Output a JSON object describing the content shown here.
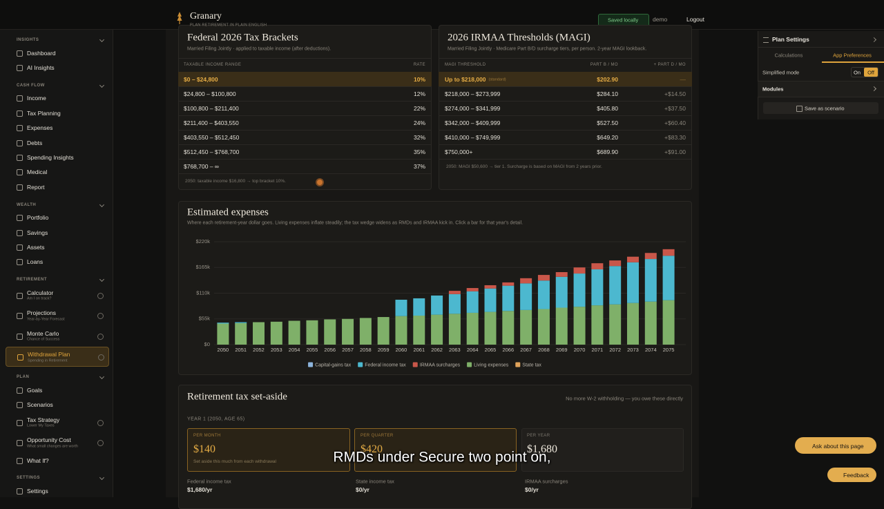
{
  "topbar": {
    "brand": "Granary",
    "tagline": "PLAN RETIREMENT IN PLAIN ENGLISH",
    "saved": "Saved locally",
    "user": "demo",
    "logout": "Logout"
  },
  "sidebar": {
    "sections": [
      {
        "title": "INSIGHTS",
        "items": [
          {
            "label": "Dashboard"
          },
          {
            "label": "AI Insights"
          }
        ]
      },
      {
        "title": "CASH FLOW",
        "items": [
          {
            "label": "Income"
          },
          {
            "label": "Tax Planning"
          },
          {
            "label": "Expenses"
          },
          {
            "label": "Debts"
          },
          {
            "label": "Spending Insights"
          },
          {
            "label": "Medical"
          },
          {
            "label": "Report"
          }
        ]
      },
      {
        "title": "WEALTH",
        "items": [
          {
            "label": "Portfolio"
          },
          {
            "label": "Savings"
          },
          {
            "label": "Assets"
          },
          {
            "label": "Loans"
          }
        ]
      },
      {
        "title": "RETIREMENT",
        "items": [
          {
            "label": "Calculator",
            "sub": "Am I on track?"
          },
          {
            "label": "Projections",
            "sub": "Year-by-Year Forecast"
          },
          {
            "label": "Monte Carlo",
            "sub": "Chance of Success"
          },
          {
            "label": "Withdrawal Plan",
            "sub": "Spending in Retirement",
            "active": true
          }
        ]
      },
      {
        "title": "PLAN",
        "items": [
          {
            "label": "Goals"
          },
          {
            "label": "Scenarios"
          },
          {
            "label": "Tax Strategy",
            "sub": "Lower My Taxes"
          },
          {
            "label": "Opportunity Cost",
            "sub": "What small changes are worth"
          },
          {
            "label": "What If?"
          }
        ]
      },
      {
        "title": "SETTINGS",
        "items": [
          {
            "label": "Settings"
          }
        ]
      }
    ]
  },
  "brackets": {
    "title": "Federal 2026 Tax Brackets",
    "subtitle": "Married Filing Jointly · applied to taxable income (after deductions).",
    "headers": [
      "TAXABLE INCOME RANGE",
      "RATE"
    ],
    "rows": [
      [
        "$0 – $24,800",
        "10%"
      ],
      [
        "$24,800 – $100,800",
        "12%"
      ],
      [
        "$100,800 – $211,400",
        "22%"
      ],
      [
        "$211,400 – $403,550",
        "24%"
      ],
      [
        "$403,550 – $512,450",
        "32%"
      ],
      [
        "$512,450 – $768,700",
        "35%"
      ],
      [
        "$768,700 – ∞",
        "37%"
      ]
    ],
    "note": "2050: taxable income $16,800 → top bracket 10%."
  },
  "irmaa": {
    "title": "2026 IRMAA Thresholds (MAGI)",
    "subtitle": "Married Filing Jointly · Medicare Part B/D surcharge tiers, per person. 2-year MAGI lookback.",
    "headers": [
      "MAGI THRESHOLD",
      "PART B / MO",
      "+ PART D / MO"
    ],
    "rows": [
      [
        "Up to $218,000",
        "$202.90",
        "—"
      ],
      [
        "$218,000 – $273,999",
        "$284.10",
        "+$14.50"
      ],
      [
        "$274,000 – $341,999",
        "$405.80",
        "+$37.50"
      ],
      [
        "$342,000 – $409,999",
        "$527.50",
        "+$60.40"
      ],
      [
        "$410,000 – $749,999",
        "$649.20",
        "+$83.30"
      ],
      [
        "$750,000+",
        "$689.90",
        "+$91.00"
      ]
    ],
    "row_tag": "(standard)",
    "note": "2050: MAGI $50,600 → tier 1. Surcharge is based on MAGI from 2 years prior."
  },
  "expenses": {
    "title": "Estimated expenses",
    "subtitle": "Where each retirement-year dollar goes. Living expenses inflate steadily; the tax wedge widens as RMDs and IRMAA kick in. Click a bar for that year's detail."
  },
  "chart_data": {
    "type": "bar",
    "stacked": true,
    "grid": true,
    "categories": [
      "2050",
      "2051",
      "2052",
      "2053",
      "2054",
      "2055",
      "2056",
      "2057",
      "2058",
      "2059",
      "2060",
      "2061",
      "2062",
      "2063",
      "2064",
      "2065",
      "2066",
      "2067",
      "2068",
      "2069",
      "2070",
      "2071",
      "2072",
      "2073",
      "2074",
      "2075"
    ],
    "series": [
      {
        "name": "Living expenses",
        "color": "#7fb069",
        "values": [
          45000,
          46000,
          48000,
          49000,
          51000,
          52000,
          54000,
          55000,
          57000,
          59000,
          61000,
          62000,
          64000,
          66000,
          68000,
          70000,
          72000,
          74000,
          76000,
          79000,
          81000,
          84000,
          86000,
          89000,
          92000,
          95000
        ]
      },
      {
        "name": "Federal income tax",
        "color": "#4cb8cf",
        "values": [
          2000,
          2000,
          0,
          0,
          0,
          0,
          0,
          0,
          0,
          0,
          35000,
          37000,
          41000,
          42000,
          46000,
          50000,
          54000,
          57000,
          61000,
          66000,
          71000,
          77000,
          82000,
          87000,
          91000,
          95000
        ]
      },
      {
        "name": "IRMAA surcharges",
        "color": "#c9574a",
        "values": [
          0,
          0,
          0,
          0,
          0,
          0,
          0,
          0,
          0,
          0,
          0,
          0,
          0,
          7000,
          7000,
          7000,
          7000,
          11000,
          12000,
          10000,
          13000,
          13000,
          12000,
          12000,
          13000,
          14000
        ]
      },
      {
        "name": "Capital-gains tax",
        "color": "#8db4dc",
        "values": [
          0,
          0,
          0,
          0,
          0,
          0,
          0,
          0,
          0,
          0,
          0,
          0,
          0,
          0,
          0,
          0,
          0,
          0,
          0,
          0,
          0,
          0,
          0,
          0,
          0,
          0
        ]
      },
      {
        "name": "State tax",
        "color": "#e0a35a",
        "values": [
          0,
          0,
          0,
          0,
          0,
          0,
          0,
          0,
          0,
          0,
          0,
          0,
          0,
          0,
          0,
          0,
          0,
          0,
          0,
          0,
          0,
          0,
          0,
          0,
          0,
          0
        ]
      }
    ],
    "ylim": [
      0,
      220000
    ],
    "yticks": [
      {
        "value": 0,
        "label": "$0"
      },
      {
        "value": 55000,
        "label": "$55k"
      },
      {
        "value": 110000,
        "label": "$110k"
      },
      {
        "value": 165000,
        "label": "$165k"
      },
      {
        "value": 220000,
        "label": "$220k"
      }
    ]
  },
  "setaside": {
    "title": "Retirement tax set-aside",
    "note": "No more W-2 withholding — you owe these directly",
    "year": "YEAR 1 (2050, AGE 65)",
    "cards": [
      {
        "label": "PER MONTH",
        "amount": "$140",
        "desc": "Set aside this much from each withdrawal"
      },
      {
        "label": "PER QUARTER",
        "amount": "$420"
      },
      {
        "label": "PER YEAR",
        "amount": "$1,680"
      }
    ],
    "items": [
      {
        "label": "Federal income tax",
        "value": "$1,680/yr"
      },
      {
        "label": "State income tax",
        "value": "$0/yr"
      },
      {
        "label": "IRMAA surcharges",
        "value": "$0/yr"
      }
    ]
  },
  "settings_panel": {
    "title": "Plan Settings",
    "tabs": [
      "Calculations",
      "App Preferences"
    ],
    "simplified": "Simplified mode",
    "on": "On",
    "off": "Off",
    "modules": "Modules",
    "save": "Save as scenario"
  },
  "assistant": {
    "ask": "Ask about this page",
    "feedback": "Feedback"
  },
  "caption": "RMDs under Secure two point on,"
}
